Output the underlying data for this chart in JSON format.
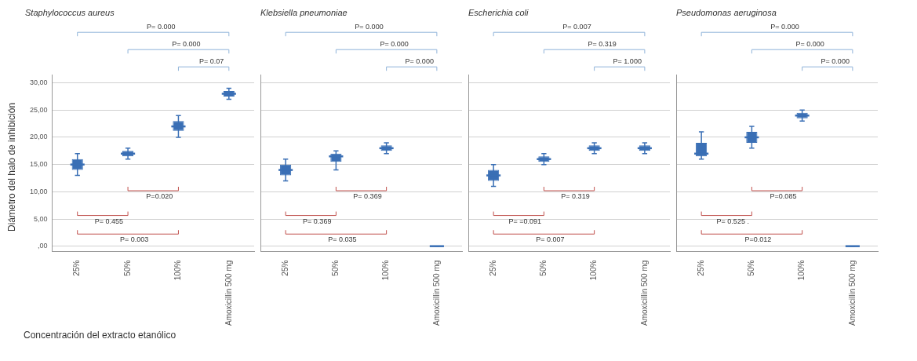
{
  "chart_data": [
    {
      "type": "box",
      "title": "Staphylococcus aureus",
      "ylabel": "Diámetro del halo de inhibición",
      "xlabel": "Concentración del extracto etanólico",
      "categories": [
        "25%",
        "50%",
        "100%",
        "Amoxicillin 500 mg"
      ],
      "color": "#3a6fb5",
      "ylim": [
        -1,
        31.5
      ],
      "yticks": [
        {
          "value": 0,
          "label": ",00"
        },
        {
          "value": 5,
          "label": "5,00"
        },
        {
          "value": 10,
          "label": "10,00"
        },
        {
          "value": 15,
          "label": "15,00"
        },
        {
          "value": 20,
          "label": "20,00"
        },
        {
          "value": 25,
          "label": "25,00"
        },
        {
          "value": 30,
          "label": "30,00"
        }
      ],
      "grid": "y",
      "boxes": [
        {
          "low": 13,
          "q1": 14,
          "median": 15,
          "q3": 16,
          "high": 17
        },
        {
          "low": 16,
          "q1": 16.5,
          "median": 17,
          "q3": 17.5,
          "high": 18
        },
        {
          "low": 20,
          "q1": 21.2,
          "median": 22,
          "q3": 23,
          "high": 24
        },
        {
          "low": 27,
          "q1": 27.5,
          "median": 28,
          "q3": 28.5,
          "high": 29
        }
      ],
      "annotations": [
        "P= 0.000",
        "P= 0.000",
        "P= 0.07",
        "P=0.020",
        "P= 0.455",
        "P= 0.003"
      ]
    },
    {
      "type": "box",
      "title": "Klebsiella pneumoniae",
      "categories": [
        "25%",
        "50%",
        "100%",
        "Amoxicillin 500 mg"
      ],
      "color": "#3a6fb5",
      "ylim": [
        -1,
        31.5
      ],
      "yticks": [
        0,
        5,
        10,
        15,
        20,
        25,
        30
      ],
      "grid": "y",
      "tick_labels": "x",
      "boxes": [
        {
          "low": 12,
          "q1": 13,
          "median": 14,
          "q3": 15,
          "high": 16
        },
        {
          "low": 14,
          "q1": 15.5,
          "median": 16.5,
          "q3": 17,
          "high": 17.5
        },
        {
          "low": 17,
          "q1": 17.5,
          "median": 18,
          "q3": 18.5,
          "high": 19
        },
        {
          "low": 0,
          "q1": 0,
          "median": 0,
          "q3": 0,
          "high": 0
        }
      ],
      "annotations": [
        "P= 0.000",
        "P= 0.000",
        "P= 0.000",
        "P= 0.369",
        "P= 0.369",
        "P= 0.035"
      ]
    },
    {
      "type": "box",
      "title": "Escherichia coli",
      "categories": [
        "25%",
        "50%",
        "100%",
        "Amoxicillin 500 mg"
      ],
      "color": "#3a6fb5",
      "ylim": [
        -1,
        31.5
      ],
      "yticks": [
        0,
        5,
        10,
        15,
        20,
        25,
        30
      ],
      "grid": "y",
      "tick_labels": "x",
      "boxes": [
        {
          "low": 11,
          "q1": 12,
          "median": 13,
          "q3": 14,
          "high": 15
        },
        {
          "low": 15,
          "q1": 15.5,
          "median": 16,
          "q3": 16.5,
          "high": 17
        },
        {
          "low": 17,
          "q1": 17.5,
          "median": 18,
          "q3": 18.5,
          "high": 19
        },
        {
          "low": 17,
          "q1": 17.5,
          "median": 18,
          "q3": 18.5,
          "high": 19
        }
      ],
      "annotations": [
        "P= 0.007",
        "P= 0.319",
        "P= 1.000",
        "P= 0.319",
        "P= =0.091",
        "P= 0.007"
      ]
    },
    {
      "type": "box",
      "title": "Pseudomonas aeruginosa",
      "categories": [
        "25%",
        "50%",
        "100%",
        "Amoxicillin 500 mg"
      ],
      "color": "#3a6fb5",
      "ylim": [
        -1,
        31.5
      ],
      "yticks": [
        0,
        5,
        10,
        15,
        20,
        25,
        30
      ],
      "grid": "y",
      "tick_labels": "x",
      "boxes": [
        {
          "low": 16,
          "q1": 16.5,
          "median": 17,
          "q3": 19,
          "high": 21
        },
        {
          "low": 18,
          "q1": 19,
          "median": 20,
          "q3": 21,
          "high": 22
        },
        {
          "low": 23,
          "q1": 23.5,
          "median": 24,
          "q3": 24.5,
          "high": 25
        },
        {
          "low": 0,
          "q1": 0,
          "median": 0,
          "q3": 0,
          "high": 0
        }
      ],
      "annotations": [
        "P= 0.000",
        "P= 0.000",
        "P= 0.000",
        "P=0.085",
        "P= 0.525 .",
        "P=0.012"
      ]
    }
  ]
}
